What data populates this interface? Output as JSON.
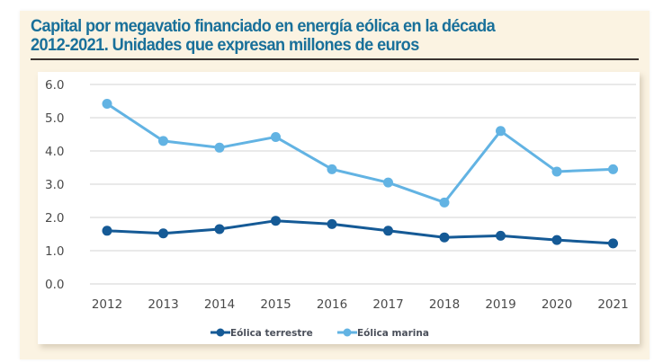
{
  "title_line1": "Capital por megavatio financiado en energía eólica en la década",
  "title_line2": "2012-2021. Unidades que expresan millones de euros",
  "chart_data": {
    "type": "line",
    "title": "Capital por megavatio financiado en energía eólica en la década 2012-2021. Unidades que expresan millones de euros",
    "xlabel": "",
    "ylabel": "",
    "categories": [
      "2012",
      "2013",
      "2014",
      "2015",
      "2016",
      "2017",
      "2018",
      "2019",
      "2020",
      "2021"
    ],
    "yticks": [
      "0.0",
      "1.0",
      "2.0",
      "3.0",
      "4.0",
      "5.0",
      "6.0"
    ],
    "ylim": [
      0,
      6
    ],
    "grid": true,
    "legend_position": "bottom",
    "series": [
      {
        "name": "Eólica terrestre",
        "color": "#155a96",
        "values": [
          1.6,
          1.52,
          1.65,
          1.9,
          1.8,
          1.6,
          1.4,
          1.45,
          1.32,
          1.22
        ]
      },
      {
        "name": "Eólica marina",
        "color": "#62b3e3",
        "values": [
          5.42,
          4.3,
          4.1,
          4.42,
          3.45,
          3.05,
          2.45,
          4.6,
          3.38,
          3.45
        ]
      }
    ]
  },
  "colors": {
    "title": "#19709a",
    "panel_background": "#fbf3e2",
    "gridline": "#dcdcdc",
    "tick_label": "#4a4a4a"
  }
}
